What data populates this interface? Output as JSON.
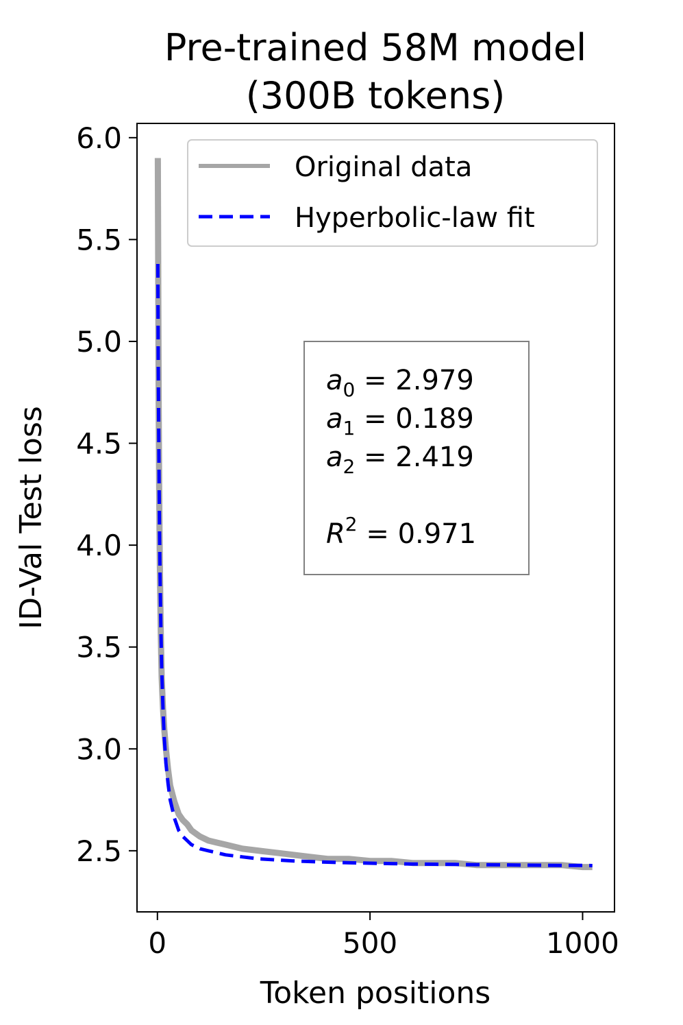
{
  "chart_data": {
    "type": "line",
    "title_lines": [
      "Pre-trained 58M model",
      "(300B tokens)"
    ],
    "xlabel": "Token positions",
    "ylabel": "ID-Val Test loss",
    "xlim": [
      -48,
      1075
    ],
    "ylim": [
      2.2,
      6.07
    ],
    "xticks": [
      0,
      500,
      1000
    ],
    "xtick_labels": [
      "0",
      "500",
      "1000"
    ],
    "yticks": [
      2.5,
      3.0,
      3.5,
      4.0,
      4.5,
      5.0,
      5.5,
      6.0
    ],
    "ytick_labels": [
      "2.5",
      "3.0",
      "3.5",
      "4.0",
      "4.5",
      "5.0",
      "5.5",
      "6.0"
    ],
    "grid": false,
    "legend_position": "top-right",
    "series": [
      {
        "name": "Original data",
        "color": "#a6a6a6",
        "style": "solid",
        "x": [
          1,
          2,
          3,
          4,
          5,
          6,
          8,
          10,
          13,
          16,
          20,
          25,
          30,
          40,
          50,
          60,
          70,
          80,
          100,
          120,
          140,
          160,
          180,
          200,
          240,
          280,
          320,
          360,
          400,
          450,
          500,
          550,
          600,
          650,
          700,
          750,
          800,
          850,
          900,
          950,
          1000,
          1023
        ],
        "y": [
          5.9,
          5.3,
          4.65,
          4.3,
          4.05,
          3.85,
          3.55,
          3.35,
          3.2,
          3.1,
          3.0,
          2.9,
          2.82,
          2.74,
          2.68,
          2.65,
          2.63,
          2.6,
          2.57,
          2.55,
          2.54,
          2.53,
          2.52,
          2.51,
          2.5,
          2.49,
          2.48,
          2.47,
          2.46,
          2.46,
          2.45,
          2.45,
          2.44,
          2.44,
          2.44,
          2.43,
          2.43,
          2.43,
          2.43,
          2.43,
          2.42,
          2.42
        ]
      },
      {
        "name": "Hyperbolic-law fit",
        "color": "#0000ff",
        "style": "dashed",
        "x": [
          1,
          2,
          3,
          4,
          5,
          6,
          8,
          10,
          13,
          16,
          20,
          25,
          30,
          40,
          50,
          60,
          70,
          80,
          100,
          120,
          140,
          160,
          180,
          200,
          240,
          280,
          320,
          360,
          400,
          450,
          500,
          550,
          600,
          650,
          700,
          750,
          800,
          850,
          900,
          950,
          1000,
          1023
        ],
        "y": [
          5.38,
          4.9,
          4.55,
          4.28,
          4.06,
          3.88,
          3.6,
          3.4,
          3.2,
          3.06,
          2.93,
          2.83,
          2.75,
          2.66,
          2.6,
          2.57,
          2.55,
          2.53,
          2.51,
          2.5,
          2.49,
          2.48,
          2.475,
          2.47,
          2.46,
          2.455,
          2.45,
          2.447,
          2.444,
          2.441,
          2.439,
          2.437,
          2.435,
          2.434,
          2.433,
          2.432,
          2.431,
          2.43,
          2.429,
          2.428,
          2.428,
          2.427
        ]
      }
    ],
    "annotation_box": {
      "lines": [
        {
          "var": "a",
          "sub": "0",
          "eq": " = 2.979"
        },
        {
          "var": "a",
          "sub": "1",
          "eq": " = 0.189"
        },
        {
          "var": "a",
          "sub": "2",
          "eq": " = 2.419"
        },
        {
          "var": "R",
          "sup": "2",
          "eq": " = 0.971"
        }
      ]
    }
  }
}
